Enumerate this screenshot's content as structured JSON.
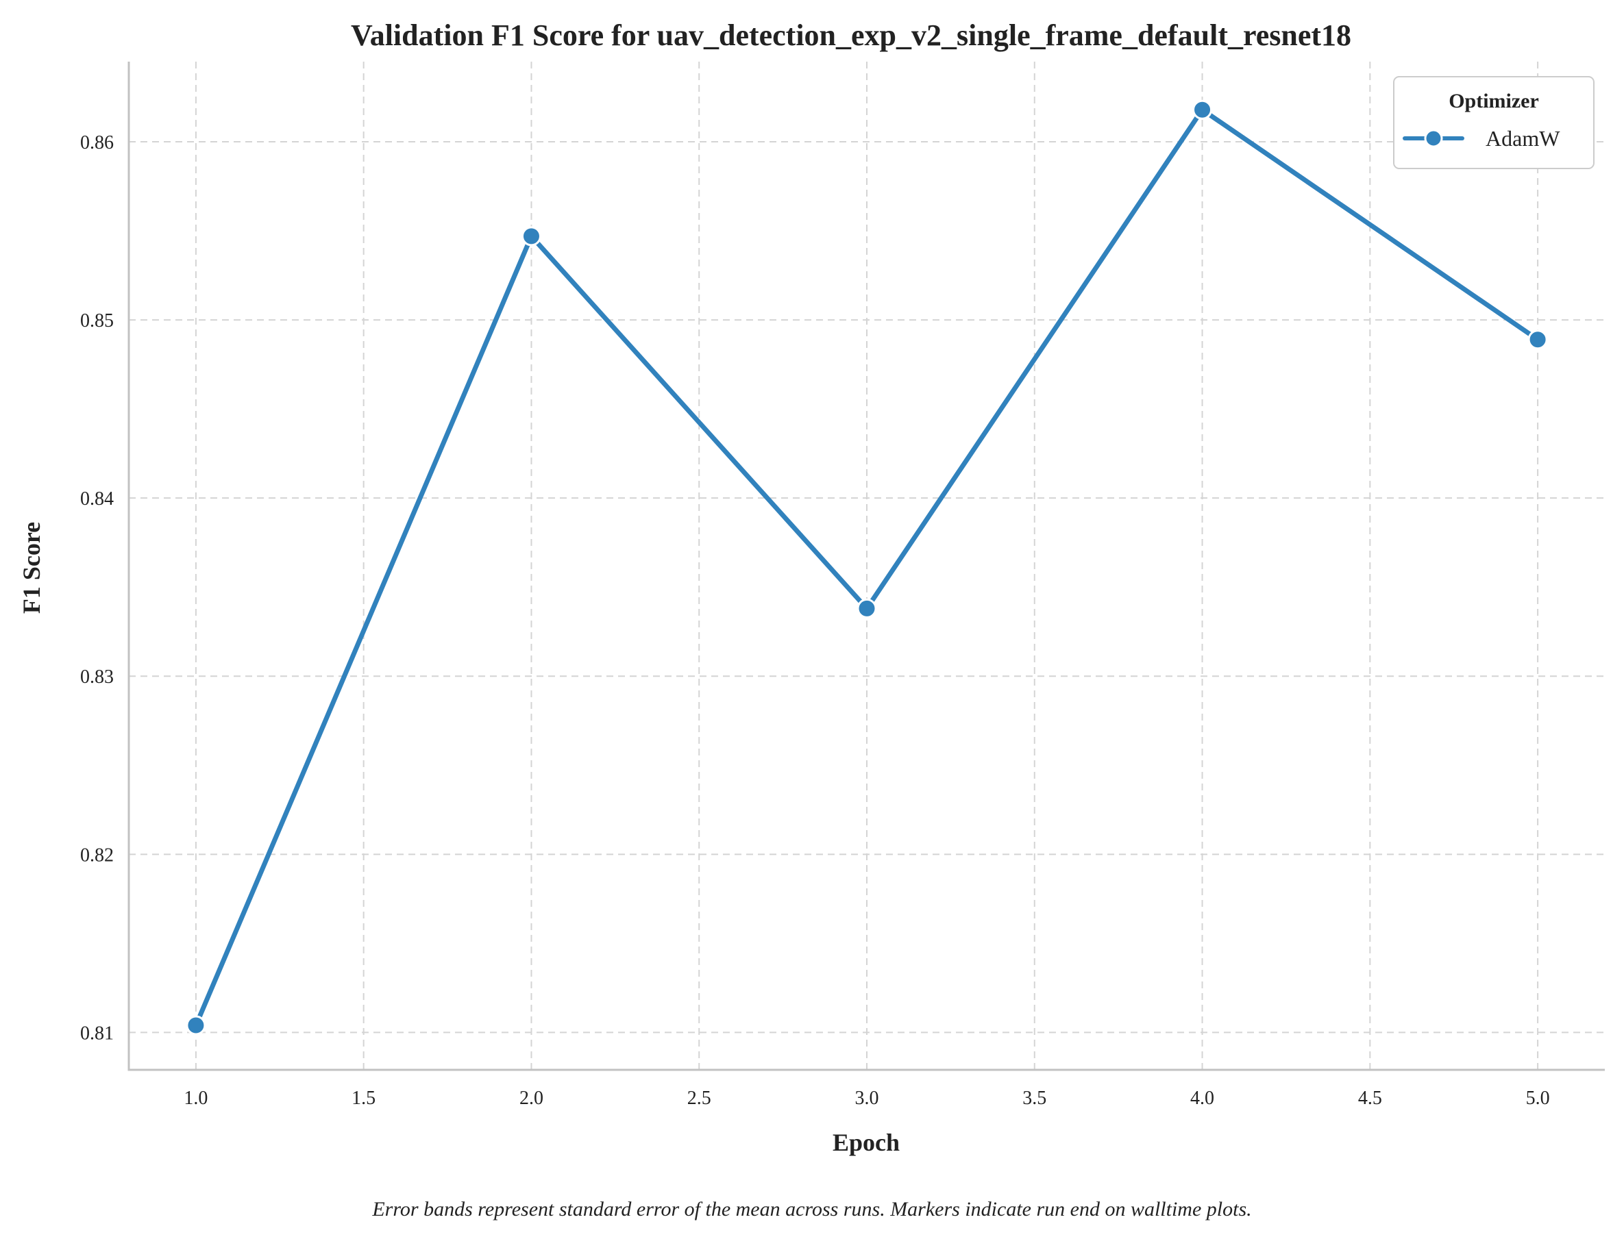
{
  "chart_data": {
    "type": "line",
    "title": "Validation F1 Score for uav_detection_exp_v2_single_frame_default_resnet18",
    "xlabel": "Epoch",
    "ylabel": "F1 Score",
    "xlim": [
      0.8,
      5.2
    ],
    "ylim": [
      0.8079,
      0.8645
    ],
    "x_ticks": [
      1.0,
      1.5,
      2.0,
      2.5,
      3.0,
      3.5,
      4.0,
      4.5,
      5.0
    ],
    "x_tick_labels": [
      "1.0",
      "1.5",
      "2.0",
      "2.5",
      "3.0",
      "3.5",
      "4.0",
      "4.5",
      "5.0"
    ],
    "y_ticks": [
      0.81,
      0.82,
      0.83,
      0.84,
      0.85,
      0.86
    ],
    "y_tick_labels": [
      "0.81",
      "0.82",
      "0.83",
      "0.84",
      "0.85",
      "0.86"
    ],
    "grid": true,
    "legend": {
      "title": "Optimizer",
      "placement": "top-right"
    },
    "series": [
      {
        "name": "AdamW",
        "color": "#3182bd",
        "marker": "circle",
        "x": [
          1.0,
          2.0,
          3.0,
          4.0,
          5.0
        ],
        "y": [
          0.8104,
          0.8547,
          0.8338,
          0.8618,
          0.8489
        ]
      }
    ],
    "caption": "Error bands represent standard error of the mean across runs. Markers indicate run end on walltime plots."
  }
}
